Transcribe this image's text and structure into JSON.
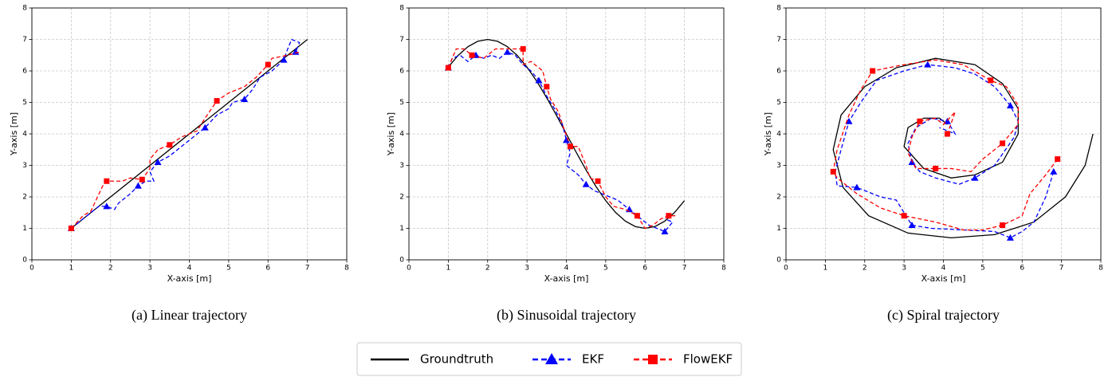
{
  "chart_data": [
    {
      "type": "line",
      "caption": "(a) Linear trajectory",
      "xlabel": "X-axis [m]",
      "ylabel": "Y-axis [m]",
      "xlim": [
        0,
        8
      ],
      "ylim": [
        0,
        8
      ],
      "xticks": [
        0,
        1,
        2,
        3,
        4,
        5,
        6,
        7,
        8
      ],
      "yticks": [
        0,
        1,
        2,
        3,
        4,
        5,
        6,
        7,
        8
      ],
      "grid": true,
      "series": [
        {
          "name": "Groundtruth",
          "color": "#000000",
          "linestyle": "solid",
          "x": [
            1,
            7
          ],
          "values": [
            1,
            7
          ]
        },
        {
          "name": "EKF",
          "color": "#0000ff",
          "linestyle": "dashed",
          "marker": "triangle",
          "x": [
            1,
            1.2,
            1.5,
            1.7,
            1.9,
            2.1,
            2.2,
            2.5,
            2.7,
            2.9,
            3.1,
            3.0,
            3.2,
            3.5,
            3.8,
            4.1,
            4.4,
            4.7,
            5.0,
            5.1,
            5.4,
            5.6,
            5.8,
            6.1,
            6.4,
            6.5,
            6.6,
            6.8,
            6.7
          ],
          "values": [
            1,
            1.2,
            1.5,
            1.7,
            1.7,
            1.6,
            1.8,
            2.1,
            2.35,
            2.5,
            2.5,
            2.8,
            3.1,
            3.3,
            3.6,
            3.9,
            4.2,
            4.6,
            4.8,
            5.0,
            5.1,
            5.4,
            5.8,
            6.0,
            6.35,
            6.7,
            7.0,
            6.9,
            6.6
          ]
        },
        {
          "name": "FlowEKF",
          "color": "#ff0000",
          "linestyle": "dashed",
          "marker": "square",
          "x": [
            1,
            1.3,
            1.5,
            1.8,
            1.9,
            2.1,
            2.3,
            2.5,
            2.8,
            3.0,
            3.0,
            3.2,
            3.5,
            3.8,
            4.2,
            4.4,
            4.7,
            5.0,
            5.4,
            5.7,
            6.0,
            6.1,
            6.5,
            6.8
          ],
          "values": [
            1,
            1.4,
            1.55,
            2.35,
            2.5,
            2.5,
            2.5,
            2.6,
            2.55,
            2.9,
            3.2,
            3.5,
            3.65,
            3.9,
            4.1,
            4.5,
            5.05,
            5.3,
            5.5,
            5.8,
            6.2,
            6.4,
            6.5,
            6.6
          ]
        }
      ]
    },
    {
      "type": "line",
      "caption": "(b) Sinusoidal trajectory",
      "xlabel": "X-axis [m]",
      "ylabel": "Y-axis [m]",
      "xlim": [
        0,
        8
      ],
      "ylim": [
        0,
        8
      ],
      "xticks": [
        0,
        1,
        2,
        3,
        4,
        5,
        6,
        7,
        8
      ],
      "yticks": [
        0,
        1,
        2,
        3,
        4,
        5,
        6,
        7,
        8
      ],
      "grid": true,
      "series": [
        {
          "color": "#000000",
          "linestyle": "solid",
          "x": [
            1,
            1.25,
            1.5,
            1.75,
            2,
            2.25,
            2.5,
            2.75,
            3,
            3.25,
            3.5,
            3.75,
            4,
            4.25,
            4.5,
            4.75,
            5,
            5.25,
            5.5,
            5.75,
            6,
            6.25,
            6.5,
            6.75,
            7
          ],
          "values": [
            6.121,
            6.494,
            6.772,
            6.942,
            7,
            6.942,
            6.772,
            6.494,
            6.121,
            5.667,
            5.148,
            4.585,
            4,
            3.415,
            2.852,
            2.333,
            1.879,
            1.506,
            1.228,
            1.058,
            1,
            1.058,
            1.228,
            1.506,
            1.879
          ]
        },
        {
          "color": "#0000ff",
          "linestyle": "dashed",
          "marker": "triangle",
          "x": [
            1,
            1.1,
            1.3,
            1.5,
            1.7,
            1.9,
            2.1,
            2.3,
            2.5,
            2.7,
            2.9,
            3.1,
            3.3,
            3.5,
            3.7,
            3.9,
            4.0,
            4.1,
            4.0,
            4.3,
            4.5,
            4.7,
            5.0,
            5.3,
            5.6,
            5.9,
            6.1,
            6.3,
            6.5,
            6.7,
            6.5
          ],
          "values": [
            6.1,
            6.4,
            6.5,
            6.3,
            6.5,
            6.4,
            6.5,
            6.4,
            6.6,
            6.5,
            6.2,
            6.0,
            5.7,
            5.2,
            4.8,
            4.3,
            3.8,
            3.4,
            3.0,
            2.7,
            2.4,
            2.2,
            2.05,
            1.9,
            1.6,
            1.3,
            1.1,
            1.0,
            0.9,
            1.2,
            1.3
          ]
        },
        {
          "color": "#ff0000",
          "linestyle": "dashed",
          "marker": "square",
          "x": [
            1,
            1.1,
            1.2,
            1.4,
            1.6,
            1.9,
            2.2,
            2.6,
            2.9,
            2.9,
            3.1,
            3.4,
            3.5,
            3.6,
            3.8,
            3.9,
            4.1,
            4.3,
            4.5,
            4.6,
            4.8,
            5.0,
            5.2,
            5.5,
            5.8,
            6.0,
            6.2,
            6.4,
            6.6,
            6.8
          ],
          "values": [
            6.1,
            6.4,
            6.7,
            6.7,
            6.5,
            6.4,
            6.7,
            6.7,
            6.7,
            6.2,
            6.3,
            6.0,
            5.5,
            5.1,
            4.7,
            4.3,
            3.6,
            3.6,
            3.0,
            2.6,
            2.5,
            2.0,
            1.7,
            1.6,
            1.4,
            1.0,
            1.1,
            1.3,
            1.4,
            1.4
          ]
        }
      ]
    },
    {
      "type": "line",
      "caption": "(c) Spiral trajectory",
      "xlabel": "X-axis [m]",
      "ylabel": "Y-axis [m]",
      "xlim": [
        0,
        8
      ],
      "ylim": [
        0,
        8
      ],
      "xticks": [
        0,
        1,
        2,
        3,
        4,
        5,
        6,
        7,
        8
      ],
      "yticks": [
        0,
        1,
        2,
        3,
        4,
        5,
        6,
        7,
        8
      ],
      "grid": true,
      "series": [
        {
          "color": "#000000",
          "linestyle": "solid",
          "x": [
            7.8,
            7.6,
            7.1,
            6.3,
            5.3,
            4.2,
            3.1,
            2.1,
            1.45,
            1.2,
            1.4,
            2.0,
            2.8,
            3.8,
            4.8,
            5.5,
            5.9,
            5.9,
            5.5,
            4.8,
            4.2,
            3.5,
            3.0,
            3.1,
            3.5,
            3.9,
            4.1
          ],
          "values": [
            4.0,
            3.0,
            2.0,
            1.2,
            0.8,
            0.7,
            0.85,
            1.4,
            2.3,
            3.5,
            4.6,
            5.5,
            6.1,
            6.4,
            6.2,
            5.6,
            4.8,
            4.0,
            3.1,
            2.7,
            2.6,
            2.9,
            3.6,
            4.2,
            4.5,
            4.5,
            4.3
          ]
        },
        {
          "color": "#0000ff",
          "linestyle": "dashed",
          "marker": "triangle",
          "x": [
            6.8,
            6.6,
            6.3,
            6.0,
            5.7,
            5.3,
            4.5,
            3.7,
            3.2,
            3.0,
            2.8,
            2.4,
            1.8,
            1.3,
            1.25,
            1.4,
            1.6,
            1.9,
            2.3,
            3.0,
            3.6,
            4.3,
            4.8,
            5.3,
            5.7,
            5.9,
            5.8,
            5.3,
            4.8,
            4.4,
            3.8,
            3.4,
            3.2,
            3.1,
            3.3,
            3.7,
            4.1,
            4.3,
            3.9
          ],
          "values": [
            2.8,
            2.0,
            1.2,
            0.9,
            0.7,
            0.9,
            0.95,
            1.0,
            1.1,
            1.5,
            1.9,
            2.0,
            2.3,
            2.35,
            2.8,
            3.5,
            4.4,
            5.0,
            5.7,
            6.0,
            6.2,
            6.1,
            5.9,
            5.5,
            4.9,
            4.4,
            3.9,
            3.0,
            2.6,
            2.4,
            2.6,
            2.8,
            3.1,
            3.7,
            4.2,
            4.5,
            4.4,
            4.0,
            4.2
          ]
        },
        {
          "color": "#ff0000",
          "linestyle": "dashed",
          "marker": "square",
          "x": [
            6.9,
            6.6,
            6.2,
            6.0,
            5.5,
            5.0,
            4.5,
            3.8,
            3.0,
            2.4,
            1.8,
            1.3,
            1.2,
            1.3,
            1.6,
            1.9,
            2.2,
            3.0,
            3.8,
            4.5,
            5.2,
            5.6,
            5.9,
            5.9,
            5.5,
            5.0,
            4.7,
            4.2,
            3.8,
            3.3,
            3.1,
            3.2,
            3.4,
            3.8,
            4.0,
            4.3,
            4.1
          ],
          "values": [
            3.2,
            2.7,
            2.1,
            1.4,
            1.1,
            0.95,
            0.95,
            1.2,
            1.4,
            1.65,
            2.1,
            2.6,
            2.8,
            3.5,
            4.6,
            5.4,
            6.0,
            6.2,
            6.35,
            6.2,
            5.7,
            5.5,
            4.9,
            4.3,
            3.7,
            3.2,
            2.8,
            2.9,
            2.9,
            2.9,
            3.4,
            3.9,
            4.4,
            4.5,
            4.3,
            4.7,
            4.0
          ]
        }
      ]
    }
  ]
}
